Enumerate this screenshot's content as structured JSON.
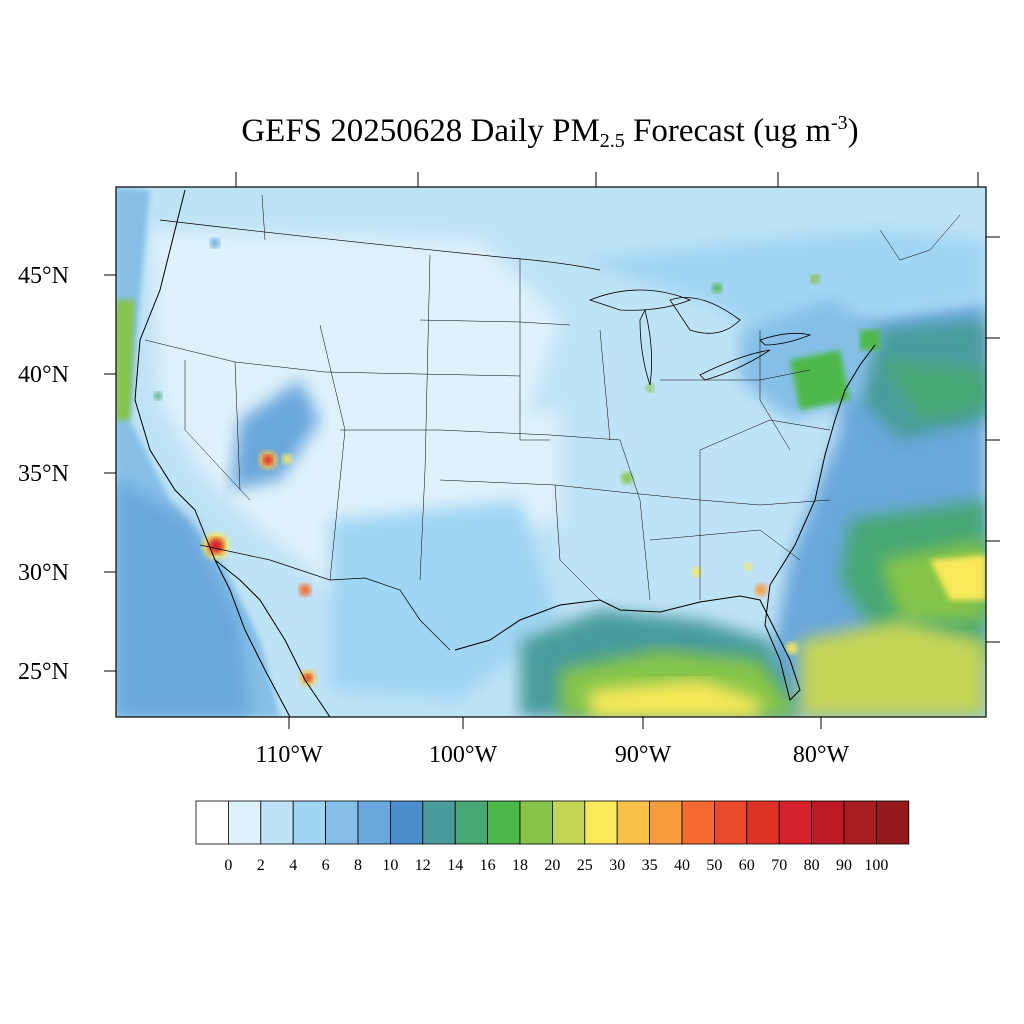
{
  "title": {
    "prefix": "GEFS 20250628 Daily PM",
    "sub": "2.5",
    "mid": " Forecast (ug m",
    "sup": "-3",
    "suffix": ")"
  },
  "map": {
    "lat_labels": [
      "45°N",
      "40°N",
      "35°N",
      "30°N",
      "25°N"
    ],
    "lon_labels": [
      "110°W",
      "100°W",
      "90°W",
      "80°W"
    ]
  },
  "colorbar": {
    "labels": [
      "0",
      "2",
      "4",
      "6",
      "8",
      "10",
      "12",
      "14",
      "16",
      "18",
      "20",
      "25",
      "30",
      "35",
      "40",
      "50",
      "60",
      "70",
      "80",
      "90",
      "100"
    ],
    "colors": [
      "#ffffff",
      "#dff1fb",
      "#bfe3f6",
      "#a0d5f3",
      "#85bfe7",
      "#6aa7dc",
      "#4a8ecd",
      "#4a9c9c",
      "#46a774",
      "#4db84a",
      "#86c54a",
      "#c3d457",
      "#f8e85a",
      "#f9c04a",
      "#f79b3f",
      "#f36b30",
      "#ea4a2c",
      "#de3427",
      "#d4212b",
      "#bc1a24",
      "#a71d20",
      "#921a1c"
    ]
  }
}
